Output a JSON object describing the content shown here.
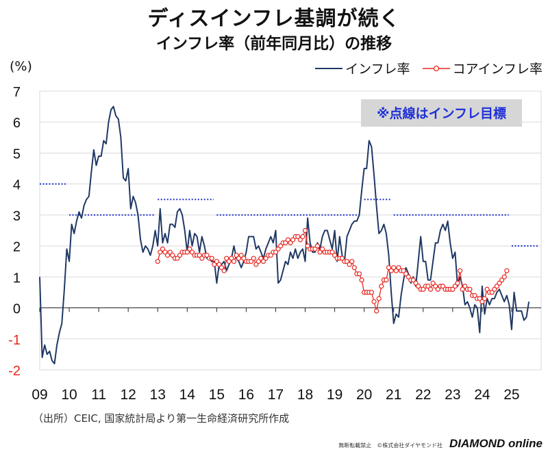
{
  "header": {
    "title": "ディスインフレ基調が続く",
    "subtitle": "インフレ率（前年同月比）の推移",
    "unit": "(%)"
  },
  "legend": {
    "inflation": "インフレ率",
    "core": "コアインフレ率"
  },
  "footer": {
    "source": "（出所）CEIC, 国家統計局より第一生命経済研究所作成",
    "copyright": "無断転載禁止　©株式会社ダイヤモンド社",
    "brand": "DIAMOND online"
  },
  "colors": {
    "inflation": "#1f3864",
    "core": "#e8261f",
    "target": "#1f2fd0",
    "note_text": "#1e2fd6",
    "note_bg": "#d6d6d6"
  },
  "chart_data": {
    "type": "line",
    "title": "インフレ率（前年同月比）の推移",
    "ylabel": "(%)",
    "ylim": [
      -2,
      7
    ],
    "yticks": [
      -2,
      -1,
      0,
      1,
      2,
      3,
      4,
      5,
      6,
      7
    ],
    "x_range": [
      2009.0,
      2026.0
    ],
    "xtick_labels": [
      "09",
      "10",
      "11",
      "12",
      "13",
      "14",
      "15",
      "16",
      "17",
      "18",
      "19",
      "20",
      "21",
      "22",
      "23",
      "24",
      "25"
    ],
    "note": "※点線はインフレ目標",
    "target": [
      {
        "from": 2009.0,
        "to": 2009.9,
        "value": 4.0
      },
      {
        "from": 2010.0,
        "to": 2012.9,
        "value": 3.0
      },
      {
        "from": 2013.0,
        "to": 2014.9,
        "value": 3.5
      },
      {
        "from": 2015.0,
        "to": 2019.9,
        "value": 3.0
      },
      {
        "from": 2020.0,
        "to": 2020.9,
        "value": 3.5
      },
      {
        "from": 2021.0,
        "to": 2024.9,
        "value": 3.0
      },
      {
        "from": 2025.0,
        "to": 2025.9,
        "value": 2.0
      }
    ],
    "series": [
      {
        "name": "インフレ率",
        "start": 2009.0,
        "step": 0.083333,
        "values": [
          1.0,
          -1.6,
          -1.2,
          -1.5,
          -1.4,
          -1.7,
          -1.8,
          -1.2,
          -0.8,
          -0.5,
          0.6,
          1.9,
          1.5,
          2.7,
          2.4,
          2.8,
          3.1,
          2.9,
          3.3,
          3.5,
          3.6,
          4.4,
          5.1,
          4.6,
          4.9,
          4.9,
          5.4,
          5.3,
          6.0,
          6.4,
          6.5,
          6.2,
          6.1,
          5.5,
          4.2,
          4.1,
          4.5,
          3.2,
          3.6,
          3.4,
          3.0,
          2.2,
          1.8,
          2.0,
          1.9,
          1.7,
          2.0,
          2.5,
          2.0,
          3.2,
          2.1,
          2.4,
          2.1,
          2.7,
          2.7,
          2.6,
          3.1,
          3.2,
          3.0,
          2.5,
          1.8,
          2.5,
          2.0,
          2.4,
          2.3,
          1.8,
          2.3,
          2.0,
          1.6,
          1.6,
          1.5,
          1.5,
          0.8,
          1.4,
          1.4,
          1.5,
          1.2,
          1.4,
          1.6,
          2.0,
          1.6,
          1.5,
          1.3,
          1.5,
          1.8,
          2.3,
          2.3,
          2.3,
          1.9,
          2.0,
          1.8,
          1.6,
          1.9,
          2.1,
          2.3,
          2.1,
          2.5,
          0.8,
          0.9,
          1.2,
          1.5,
          1.4,
          1.8,
          1.6,
          1.9,
          1.6,
          1.8,
          1.9,
          1.5,
          2.9,
          2.1,
          1.8,
          1.8,
          2.1,
          1.9,
          2.3,
          2.5,
          2.5,
          2.2,
          1.9,
          2.5,
          1.5,
          2.3,
          1.7,
          1.5,
          2.3,
          2.5,
          2.7,
          2.8,
          2.8,
          3.0,
          3.8,
          4.5,
          4.5,
          5.4,
          5.2,
          4.3,
          3.3,
          2.4,
          2.5,
          2.7,
          2.4,
          1.7,
          0.5,
          -0.5,
          -0.2,
          -0.3,
          0.4,
          0.9,
          1.3,
          1.1,
          0.8,
          1.0,
          0.7,
          1.5,
          2.3,
          1.5,
          1.5,
          0.9,
          0.9,
          1.5,
          2.1,
          2.1,
          2.5,
          2.7,
          2.5,
          2.8,
          2.1,
          1.6,
          1.8,
          0.7,
          1.0,
          0.7,
          0.1,
          0.2,
          0.0,
          -0.3,
          0.1,
          0.0,
          -0.8,
          0.7,
          -0.2,
          0.3,
          0.1,
          0.3,
          0.3,
          0.5,
          0.6,
          0.4,
          0.2,
          0.4,
          0.1,
          -0.7,
          0.5,
          -0.1,
          -0.1,
          -0.1,
          -0.4,
          -0.3,
          0.2
        ]
      },
      {
        "name": "コアインフレ率",
        "start": 2013.0,
        "step": 0.083333,
        "values": [
          1.5,
          1.8,
          1.9,
          1.8,
          1.7,
          1.8,
          1.7,
          1.6,
          1.6,
          1.7,
          1.8,
          1.8,
          1.8,
          1.9,
          1.8,
          1.7,
          1.7,
          1.7,
          1.6,
          1.7,
          1.7,
          1.6,
          1.6,
          1.4,
          1.5,
          1.4,
          1.3,
          1.2,
          1.6,
          1.5,
          1.6,
          1.5,
          1.7,
          1.6,
          1.7,
          1.6,
          1.5,
          1.5,
          1.5,
          1.6,
          1.4,
          1.5,
          1.6,
          1.5,
          1.6,
          1.7,
          1.7,
          1.8,
          1.8,
          1.9,
          2.0,
          2.1,
          2.1,
          2.2,
          2.1,
          2.2,
          2.3,
          2.3,
          2.2,
          2.3,
          2.5,
          2.0,
          1.9,
          1.9,
          1.9,
          2.0,
          1.8,
          1.9,
          1.8,
          1.8,
          1.8,
          1.8,
          1.7,
          1.6,
          1.6,
          1.6,
          1.5,
          1.5,
          1.4,
          1.5,
          1.3,
          1.1,
          1.1,
          0.9,
          0.5,
          0.5,
          0.5,
          0.5,
          0.2,
          -0.1,
          0.3,
          0.7,
          0.9,
          0.9,
          1.3,
          1.2,
          1.3,
          1.2,
          1.3,
          1.2,
          1.2,
          1.1,
          1.0,
          0.9,
          0.9,
          0.8,
          0.7,
          0.6,
          0.6,
          0.7,
          0.7,
          0.6,
          0.8,
          0.7,
          0.6,
          0.7,
          0.7,
          0.6,
          0.6,
          0.6,
          0.6,
          0.7,
          0.8,
          1.2,
          0.6,
          0.7,
          0.6,
          0.6,
          0.4,
          0.4,
          0.3,
          0.3,
          0.2,
          0.3,
          0.6,
          0.5,
          0.5,
          0.6,
          0.7,
          0.8,
          0.9,
          1.0,
          1.2
        ]
      }
    ]
  }
}
